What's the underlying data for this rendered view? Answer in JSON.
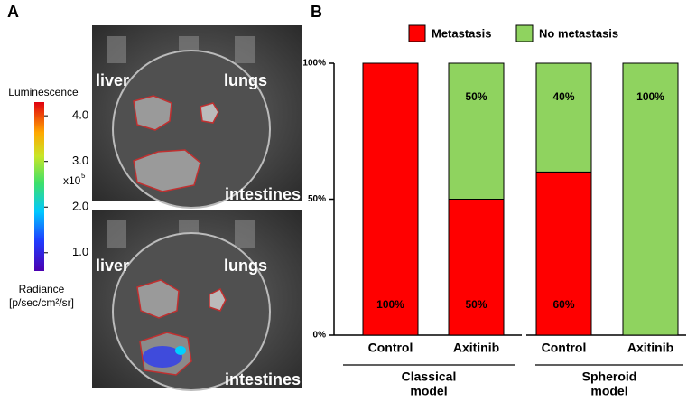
{
  "panel_labels": [
    "A",
    "B"
  ],
  "photos": [
    {
      "labels": [
        "liver",
        "lungs",
        "intestines"
      ]
    },
    {
      "labels": [
        "liver",
        "lungs",
        "intestines"
      ]
    }
  ],
  "colorbar": {
    "title": "Luminescence",
    "multiplier": "x10",
    "multiplier_exponent": "5",
    "unit_lines": [
      "Radiance",
      "[p/sec/cm²/sr]"
    ],
    "clim": [
      0.6,
      4.3
    ],
    "ticks": [
      {
        "value": 4.0,
        "label": "4.0"
      },
      {
        "value": 3.0,
        "label": "3.0"
      },
      {
        "value": 2.0,
        "label": "2.0"
      },
      {
        "value": 1.0,
        "label": "1.0"
      }
    ]
  },
  "chart_data": {
    "type": "stacked_bar",
    "categories": [
      "Control",
      "Axitinib",
      "Control",
      "Axitinib"
    ],
    "group_labels": [
      [
        "Classical",
        "model"
      ],
      [
        "Spheroid",
        "model"
      ]
    ],
    "series": [
      {
        "name": "Metastasis",
        "color": "#ff0000",
        "values": [
          100,
          50,
          60,
          0
        ],
        "value_labels": [
          "100%",
          "50%",
          "60%",
          null
        ]
      },
      {
        "name": "No metastasis",
        "color": "#8fd35f",
        "values": [
          0,
          50,
          40,
          100
        ],
        "value_labels": [
          null,
          "50%",
          "40%",
          "100%"
        ]
      }
    ],
    "ylim": [
      0,
      100
    ],
    "yticks": [
      {
        "value": 0,
        "label": "0%"
      },
      {
        "value": 50,
        "label": "50%"
      },
      {
        "value": 100,
        "label": "100%"
      }
    ],
    "legend": "top"
  }
}
